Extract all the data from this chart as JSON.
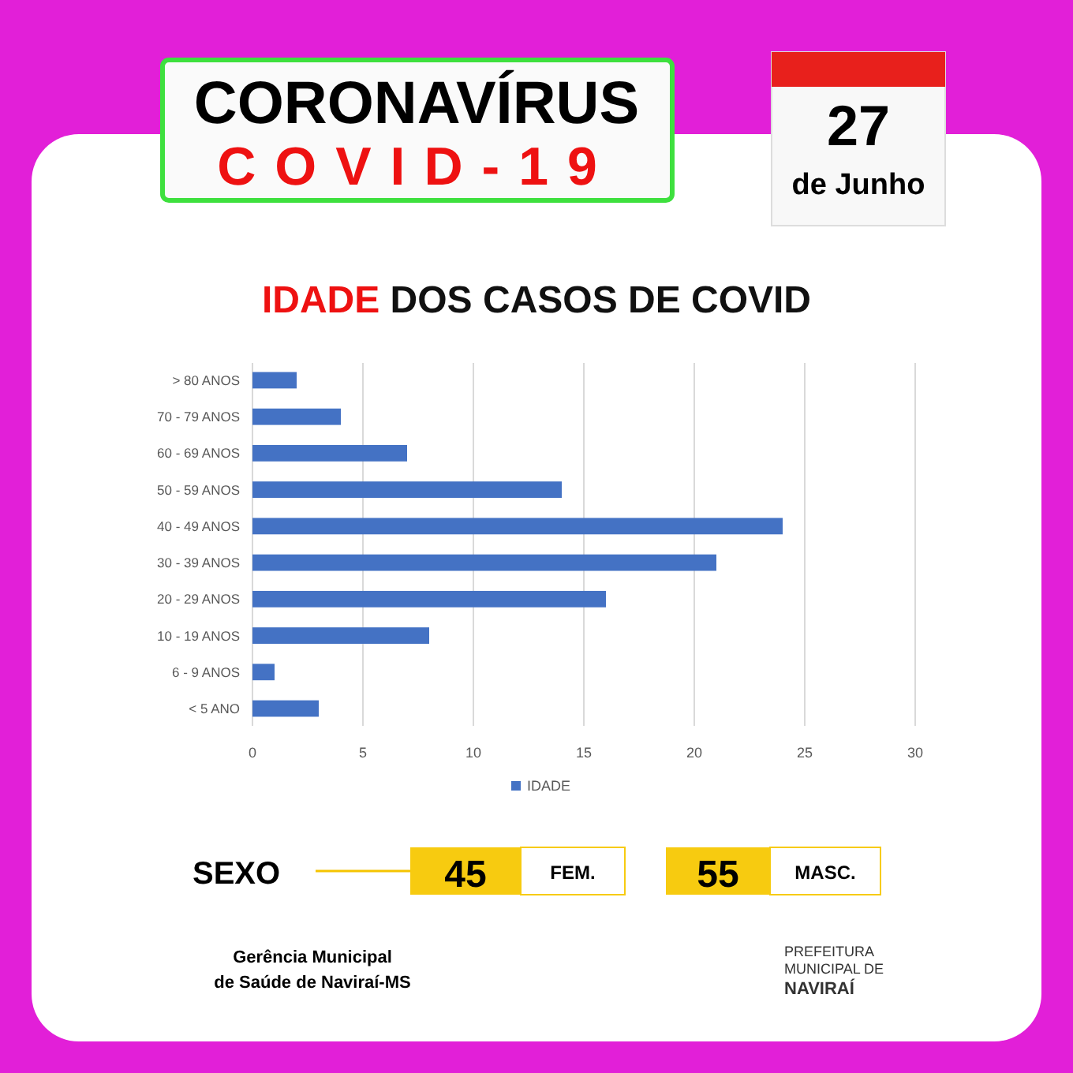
{
  "chart_data": {
    "type": "bar",
    "orientation": "horizontal",
    "title": "IDADE DOS CASOS DE COVID",
    "categories": [
      "> 80 ANOS",
      "70 - 79 ANOS",
      "60 - 69 ANOS",
      "50 - 59 ANOS",
      "40 - 49 ANOS",
      "30 - 39 ANOS",
      "20 - 29 ANOS",
      "10 - 19 ANOS",
      "6 - 9 ANOS",
      "< 5 ANO"
    ],
    "series": [
      {
        "name": "IDADE",
        "color": "#4472c4",
        "values": [
          2,
          4,
          7,
          14,
          24,
          21,
          16,
          8,
          1,
          3
        ]
      }
    ],
    "xlim": [
      0,
      30
    ],
    "xticks": [
      0,
      5,
      10,
      15,
      20,
      25,
      30
    ],
    "grid": "x",
    "legend": "bottom",
    "annotations": [
      "CORONAVÍRUS",
      "COVID-19",
      "27",
      "de Junho",
      "SEXO",
      "45",
      "FEM.",
      "55",
      "MASC.",
      "Gerência Municipal de Saúde de Naviraí-MS",
      "PREFEITURA MUNICIPAL DE NAVIRAÍ"
    ]
  }
}
